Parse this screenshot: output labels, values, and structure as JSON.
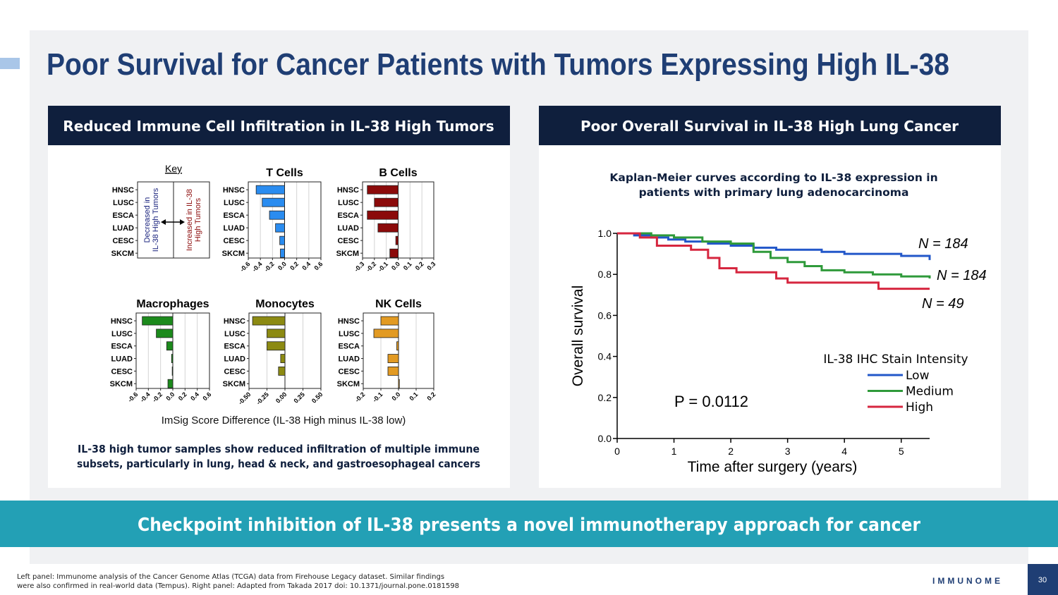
{
  "title": "Poor Survival for Cancer Patients with Tumors Expressing High IL-38",
  "left_panel": {
    "header": "Reduced Immune Cell Infiltration in IL-38 High Tumors",
    "key": {
      "title": "Key",
      "categories": [
        "HNSC",
        "LUSC",
        "ESCA",
        "LUAD",
        "CESC",
        "SKCM"
      ],
      "decreased": [
        "Decreased in",
        "IL-38 High Tumors"
      ],
      "increased": [
        "Increased in IL-38",
        "High Tumors"
      ]
    },
    "x_label": "ImSig Score Difference (IL-38 High minus IL-38 low)",
    "caption": [
      "IL-38 high tumor samples show reduced infiltration of multiple immune",
      "subsets, particularly in lung, head & neck, and gastroesophageal cancers"
    ]
  },
  "right_panel": {
    "header": "Poor Overall Survival in IL-38 High Lung Cancer"
  },
  "banner": "Checkpoint inhibition of IL-38 presents a novel immunotherapy approach for cancer",
  "footnote": [
    "Left panel: Immunome analysis of the Cancer Genome Atlas (TCGA) data from Firehouse Legacy dataset. Similar findings",
    "were also confirmed in real-world data (Tempus). Right panel: Adapted from Takada 2017 doi: 10.1371/journal.pone.0181598"
  ],
  "logo": "IMMUNOME",
  "page_number": "30",
  "chart_data": [
    {
      "type": "hbar",
      "title": "T Cells",
      "color": "#2a8cf0",
      "categories": [
        "HNSC",
        "LUSC",
        "ESCA",
        "LUAD",
        "CESC",
        "SKCM"
      ],
      "values": [
        -0.47,
        -0.37,
        -0.25,
        -0.15,
        -0.08,
        -0.07
      ],
      "xlim": [
        -0.6,
        0.6
      ],
      "xticks": [
        -0.6,
        -0.4,
        -0.2,
        {
          "value": 0,
          "label": "0.0"
        },
        0.2,
        0.4,
        0.6
      ],
      "grid": true
    },
    {
      "type": "hbar",
      "title": "B Cells",
      "color": "#8b0a0a",
      "categories": [
        "HNSC",
        "LUSC",
        "ESCA",
        "LUAD",
        "CESC",
        "SKCM"
      ],
      "values": [
        -0.26,
        -0.2,
        -0.26,
        -0.17,
        -0.02,
        -0.07
      ],
      "xlim": [
        -0.3,
        0.3
      ],
      "xticks": [
        -0.3,
        -0.2,
        -0.1,
        {
          "value": 0,
          "label": "0.0"
        },
        0.1,
        0.2,
        0.3
      ],
      "grid": true
    },
    {
      "type": "hbar",
      "title": "Macrophages",
      "color": "#1c8a1c",
      "categories": [
        "HNSC",
        "LUSC",
        "ESCA",
        "LUAD",
        "CESC",
        "SKCM"
      ],
      "values": [
        -0.5,
        -0.27,
        -0.1,
        -0.02,
        -0.01,
        -0.08
      ],
      "xlim": [
        -0.6,
        0.6
      ],
      "xticks": [
        -0.6,
        -0.4,
        -0.2,
        {
          "value": 0,
          "label": "0.0"
        },
        0.2,
        0.4,
        0.6
      ],
      "grid": true
    },
    {
      "type": "hbar",
      "title": "Monocytes",
      "color": "#8c8a12",
      "categories": [
        "HNSC",
        "LUSC",
        "ESCA",
        "LUAD",
        "CESC",
        "SKCM"
      ],
      "values": [
        -0.45,
        -0.25,
        -0.25,
        -0.06,
        -0.09,
        0
      ],
      "xlim": [
        -0.5,
        0.5
      ],
      "xticks": [
        {
          "value": -0.5,
          "label": "-0.50"
        },
        -0.25,
        {
          "value": 0,
          "label": "0.00"
        },
        0.25,
        {
          "value": 0.5,
          "label": "0.50"
        }
      ],
      "grid": true
    },
    {
      "type": "hbar",
      "title": "NK Cells",
      "color": "#e29a22",
      "categories": [
        "HNSC",
        "LUSC",
        "ESCA",
        "LUAD",
        "CESC",
        "SKCM"
      ],
      "values": [
        -0.1,
        -0.14,
        -0.01,
        -0.06,
        -0.06,
        0.005
      ],
      "xlim": [
        -0.2,
        0.2
      ],
      "xticks": [
        -0.2,
        -0.1,
        {
          "value": 0,
          "label": "0.0"
        },
        0.1,
        0.2
      ],
      "grid": true
    },
    {
      "type": "line",
      "step": true,
      "title": "Kaplan-Meier curves according to IL-38 expression in patients with primary lung adenocarcinoma",
      "x_label": "Time after surgery (years)",
      "y_label": "Overall survival",
      "xlim": [
        0,
        5.5
      ],
      "xticks": [
        0,
        1,
        2,
        3,
        4,
        5
      ],
      "ylim": [
        0,
        1
      ],
      "yticks": [
        {
          "value": 0,
          "label": "0.0"
        },
        0.2,
        0.4,
        0.6,
        0.8,
        {
          "value": 1,
          "label": "1.0"
        }
      ],
      "legend_title": "IL-38 IHC Stain Intensity",
      "series": [
        {
          "name": "Low",
          "color": "#2257c9",
          "annotation": "N = 184",
          "x": [
            0,
            0.3,
            0.6,
            0.9,
            1.2,
            1.6,
            2.0,
            2.4,
            2.8,
            3.2,
            3.6,
            4.0,
            4.5,
            5.0,
            5.5
          ],
          "values": [
            1,
            0.99,
            0.98,
            0.97,
            0.96,
            0.95,
            0.94,
            0.93,
            0.92,
            0.92,
            0.91,
            0.9,
            0.9,
            0.89,
            0.87
          ]
        },
        {
          "name": "Medium",
          "color": "#2f9a3a",
          "annotation": "N = 184",
          "x": [
            0,
            0.6,
            1.0,
            1.5,
            2.0,
            2.4,
            2.7,
            3.0,
            3.3,
            3.6,
            4.0,
            4.5,
            5.0,
            5.5
          ],
          "values": [
            1,
            0.99,
            0.98,
            0.96,
            0.95,
            0.91,
            0.88,
            0.86,
            0.84,
            0.82,
            0.81,
            0.8,
            0.79,
            0.78
          ]
        },
        {
          "name": "High",
          "color": "#d6263f",
          "annotation": "N = 49",
          "x": [
            0,
            0.4,
            0.7,
            1.3,
            1.6,
            1.8,
            2.1,
            2.8,
            3.0,
            4.6,
            5.5
          ],
          "values": [
            1,
            0.98,
            0.94,
            0.92,
            0.88,
            0.83,
            0.81,
            0.78,
            0.76,
            0.73,
            0.73
          ]
        }
      ],
      "p_value_label": "P = 0.0112"
    }
  ]
}
